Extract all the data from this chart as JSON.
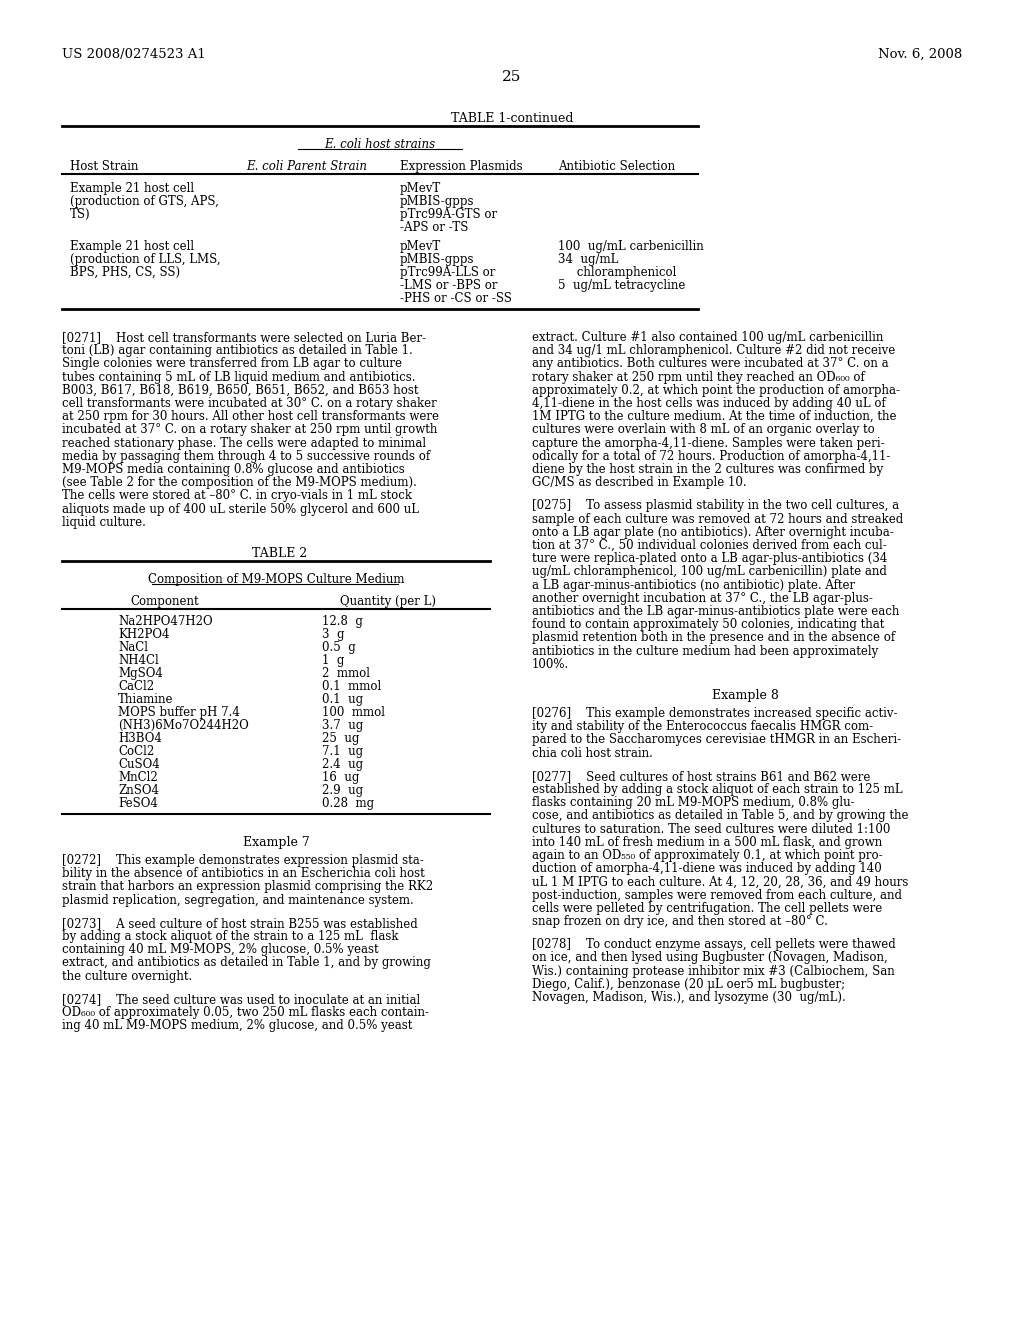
{
  "bg_color": "#ffffff",
  "header_left": "US 2008/0274523 A1",
  "header_right": "Nov. 6, 2008",
  "page_number": "25",
  "table1_title": "TABLE 1-continued",
  "table1_subtitle": "E. coli host strains",
  "table1_col_headers": [
    "Host Strain",
    "E. coli Parent Strain",
    "Expression Plasmids",
    "Antibiotic Selection"
  ],
  "table2_title": "TABLE 2",
  "table2_subtitle": "Composition of M9-MOPS Culture Medium",
  "table2_col_headers": [
    "Component",
    "Quantity (per L)"
  ],
  "table2_rows": [
    [
      "Na2HPO47H2O",
      "12.8  g"
    ],
    [
      "KH2PO4",
      "3  g"
    ],
    [
      "NaCl",
      "0.5  g"
    ],
    [
      "NH4Cl",
      "1  g"
    ],
    [
      "MgSO4",
      "2  mmol"
    ],
    [
      "CaCl2",
      "0.1  mmol"
    ],
    [
      "Thiamine",
      "0.1  ug"
    ],
    [
      "MOPS buffer pH 7.4",
      "100  mmol"
    ],
    [
      "(NH3)6Mo7O244H2O",
      "3.7  ug"
    ],
    [
      "H3BO4",
      "25  ug"
    ],
    [
      "CoCl2",
      "7.1  ug"
    ],
    [
      "CuSO4",
      "2.4  ug"
    ],
    [
      "MnCl2",
      "16  ug"
    ],
    [
      "ZnSO4",
      "2.9  ug"
    ],
    [
      "FeSO4",
      "0.28  mg"
    ]
  ],
  "example7_title": "Example 7",
  "example8_title": "Example 8",
  "left_col": {
    "para271_lines": [
      "[0271]    Host cell transformants were selected on Luria Ber-",
      "toni (LB) agar containing antibiotics as detailed in Table 1.",
      "Single colonies were transferred from LB agar to culture",
      "tubes containing 5 mL of LB liquid medium and antibiotics.",
      "B003, B617, B618, B619, B650, B651, B652, and B653 host",
      "cell transformants were incubated at 30° C. on a rotary shaker",
      "at 250 rpm for 30 hours. All other host cell transformants were",
      "incubated at 37° C. on a rotary shaker at 250 rpm until growth",
      "reached stationary phase. The cells were adapted to minimal",
      "media by passaging them through 4 to 5 successive rounds of",
      "M9-MOPS media containing 0.8% glucose and antibiotics",
      "(see Table 2 for the composition of the M9-MOPS medium).",
      "The cells were stored at –80° C. in cryo-vials in 1 mL stock",
      "aliquots made up of 400 uL sterile 50% glycerol and 600 uL",
      "liquid culture."
    ],
    "para272_lines": [
      "[0272]    This example demonstrates expression plasmid sta-",
      "bility in the absence of antibiotics in an Escherichia coli host",
      "strain that harbors an expression plasmid comprising the RK2",
      "plasmid replication, segregation, and maintenance system."
    ],
    "para273_lines": [
      "[0273]    A seed culture of host strain B255 was established",
      "by adding a stock aliquot of the strain to a 125 mL  flask",
      "containing 40 mL M9-MOPS, 2% glucose, 0.5% yeast",
      "extract, and antibiotics as detailed in Table 1, and by growing",
      "the culture overnight."
    ],
    "para274_lines": [
      "[0274]    The seed culture was used to inoculate at an initial",
      "OD₆₀₀ of approximately 0.05, two 250 mL flasks each contain-",
      "ing 40 mL M9-MOPS medium, 2% glucose, and 0.5% yeast"
    ]
  },
  "right_col": {
    "para271cont_lines": [
      "extract. Culture #1 also contained 100 ug/mL carbenicillin",
      "and 34 ug/1 mL chloramphenicol. Culture #2 did not receive",
      "any antibiotics. Both cultures were incubated at 37° C. on a",
      "rotary shaker at 250 rpm until they reached an OD₆₀₀ of",
      "approximately 0.2, at which point the production of amorpha-",
      "4,11-diene in the host cells was induced by adding 40 uL of",
      "1M IPTG to the culture medium. At the time of induction, the",
      "cultures were overlain with 8 mL of an organic overlay to",
      "capture the amorpha-4,11-diene. Samples were taken peri-",
      "odically for a total of 72 hours. Production of amorpha-4,11-",
      "diene by the host strain in the 2 cultures was confirmed by",
      "GC/MS as described in Example 10."
    ],
    "para275_lines": [
      "[0275]    To assess plasmid stability in the two cell cultures, a",
      "sample of each culture was removed at 72 hours and streaked",
      "onto a LB agar plate (no antibiotics). After overnight incuba-",
      "tion at 37° C., 50 individual colonies derived from each cul-",
      "ture were replica-plated onto a LB agar-plus-antibiotics (34",
      "ug/mL chloramphenicol, 100 ug/mL carbenicillin) plate and",
      "a LB agar-minus-antibiotics (no antibiotic) plate. After",
      "another overnight incubation at 37° C., the LB agar-plus-",
      "antibiotics and the LB agar-minus-antibiotics plate were each",
      "found to contain approximately 50 colonies, indicating that",
      "plasmid retention both in the presence and in the absence of",
      "antibiotics in the culture medium had been approximately",
      "100%."
    ],
    "para276_lines": [
      "[0276]    This example demonstrates increased specific activ-",
      "ity and stability of the Enterococcus faecalis HMGR com-",
      "pared to the Saccharomyces cerevisiae tHMGR in an Escheri-",
      "chia coli host strain."
    ],
    "para277_lines": [
      "[0277]    Seed cultures of host strains B61 and B62 were",
      "established by adding a stock aliquot of each strain to 125 mL",
      "flasks containing 20 mL M9-MOPS medium, 0.8% glu-",
      "cose, and antibiotics as detailed in Table 5, and by growing the",
      "cultures to saturation. The seed cultures were diluted 1:100",
      "into 140 mL of fresh medium in a 500 mL flask, and grown",
      "again to an OD₅₅₀ of approximately 0.1, at which point pro-",
      "duction of amorpha-4,11-diene was induced by adding 140",
      "uL 1 M IPTG to each culture. At 4, 12, 20, 28, 36, and 49 hours",
      "post-induction, samples were removed from each culture, and",
      "cells were pelleted by centrifugation. The cell pellets were",
      "snap frozen on dry ice, and then stored at –80° C."
    ],
    "para278_lines": [
      "[0278]    To conduct enzyme assays, cell pellets were thawed",
      "on ice, and then lysed using Bugbuster (Novagen, Madison,",
      "Wis.) containing protease inhibitor mix #3 (Calbiochem, San",
      "Diego, Calif.), benzonase (20 μL oer5 mL bugbuster;",
      "Novagen, Madison, Wis.), and lysozyme (30  ug/mL)."
    ]
  }
}
